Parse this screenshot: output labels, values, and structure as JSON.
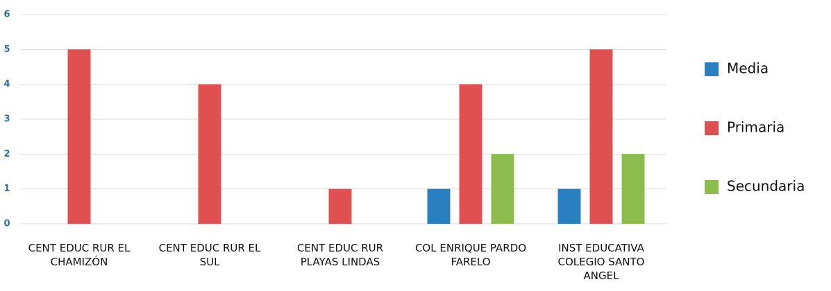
{
  "chart_data": {
    "type": "bar",
    "categories": [
      "CENT EDUC RUR EL CHAMIZÓN",
      "CENT EDUC RUR EL SUL",
      "CENT EDUC RUR PLAYAS LINDAS",
      "COL ENRIQUE PARDO FARELO",
      "INST EDUCATIVA COLEGIO SANTO ANGEL"
    ],
    "series": [
      {
        "name": "Media",
        "color": "#2a7fc1",
        "values": [
          0,
          0,
          0,
          1,
          1
        ]
      },
      {
        "name": "Primaria",
        "color": "#e05050",
        "values": [
          5,
          4,
          1,
          4,
          5
        ]
      },
      {
        "name": "Secundaria",
        "color": "#8cbd4c",
        "values": [
          0,
          0,
          0,
          2,
          2
        ]
      }
    ],
    "ylim": [
      0,
      6
    ],
    "yticks": [
      0,
      1,
      2,
      3,
      4,
      5,
      6
    ],
    "grid": true,
    "legend": "right"
  }
}
